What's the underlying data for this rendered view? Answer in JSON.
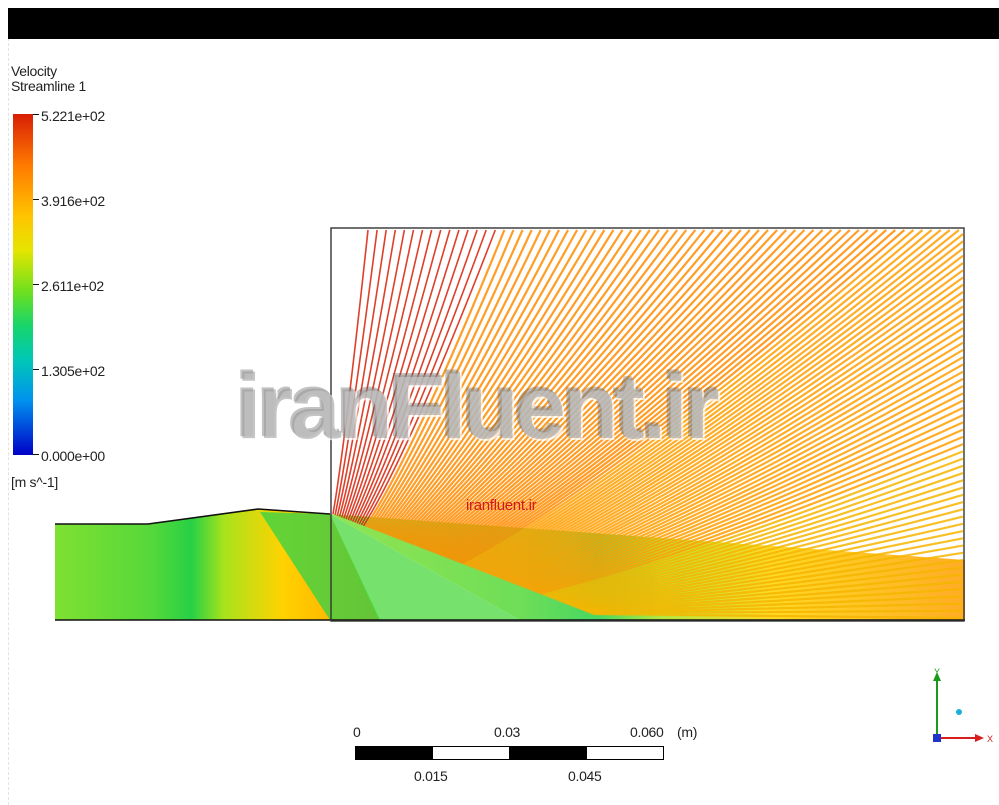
{
  "legend": {
    "title_line1": "Velocity",
    "title_line2": "Streamline 1",
    "ticks": [
      "5.221e+02",
      "3.916e+02",
      "2.611e+02",
      "1.305e+02",
      "0.000e+00"
    ],
    "units": "[m s^-1]"
  },
  "watermark": {
    "large": "iranFluent.ir",
    "small": "iranfluent.ir"
  },
  "scale_bar": {
    "top_labels": [
      "0",
      "0.03",
      "0.060"
    ],
    "unit": "(m)",
    "bottom_labels": [
      "0.015",
      "0.045"
    ]
  },
  "axes_triad": {
    "y_label": "Y",
    "x_label": "X"
  },
  "colors": {
    "high": "#d81e05",
    "mid_high": "#ff8c00",
    "mid": "#e5e500",
    "mid_low": "#18d56a",
    "low": "#0000c8"
  },
  "colormap_range": [
    0.0,
    522.1
  ]
}
